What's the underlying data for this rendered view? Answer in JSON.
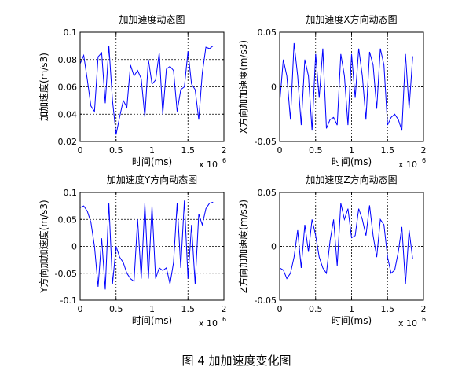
{
  "figure_caption": "图 4  加加速度变化图",
  "chart_data": [
    {
      "type": "line",
      "title": "加加速度动态图",
      "xlabel": "时间(ms)",
      "ylabel": "加加速度(m/s3)",
      "x_exponent_label": "x 10",
      "x_exponent_power": "6",
      "xlim": [
        0,
        2
      ],
      "ylim": [
        0.02,
        0.1
      ],
      "xticks": [
        "0",
        "0.5",
        "1",
        "1.5",
        "2"
      ],
      "yticks": [
        "0.02",
        "0.04",
        "0.06",
        "0.08",
        "0.1"
      ],
      "grid": "dotted",
      "color": "#0000ff",
      "series": [
        {
          "x": [
            0,
            0.05,
            0.1,
            0.15,
            0.2,
            0.25,
            0.3,
            0.35,
            0.4,
            0.45,
            0.5,
            0.55,
            0.6,
            0.65,
            0.7,
            0.75,
            0.8,
            0.85,
            0.9,
            0.95,
            1.0,
            1.05,
            1.1,
            1.15,
            1.2,
            1.25,
            1.3,
            1.35,
            1.4,
            1.45,
            1.5,
            1.55,
            1.6,
            1.65,
            1.7,
            1.75,
            1.8,
            1.85
          ],
          "values": [
            0.077,
            0.083,
            0.065,
            0.046,
            0.042,
            0.082,
            0.085,
            0.048,
            0.09,
            0.05,
            0.025,
            0.038,
            0.05,
            0.045,
            0.076,
            0.068,
            0.072,
            0.066,
            0.038,
            0.08,
            0.062,
            0.065,
            0.085,
            0.04,
            0.073,
            0.075,
            0.072,
            0.042,
            0.058,
            0.06,
            0.086,
            0.062,
            0.058,
            0.036,
            0.07,
            0.089,
            0.088,
            0.09
          ]
        }
      ]
    },
    {
      "type": "line",
      "title": "加加速度X方向动态图",
      "xlabel": "时间(ms)",
      "ylabel": "X方向加加速度(m/s3)",
      "x_exponent_label": "x 10",
      "x_exponent_power": "6",
      "xlim": [
        0,
        2
      ],
      "ylim": [
        -0.05,
        0.05
      ],
      "xticks": [
        "0",
        "0.5",
        "1",
        "1.5",
        "2"
      ],
      "yticks": [
        "-0.05",
        "0",
        "0.05"
      ],
      "grid": "dotted",
      "color": "#0000ff",
      "series": [
        {
          "x": [
            0,
            0.05,
            0.1,
            0.15,
            0.2,
            0.25,
            0.3,
            0.35,
            0.4,
            0.45,
            0.5,
            0.55,
            0.6,
            0.65,
            0.7,
            0.75,
            0.8,
            0.85,
            0.9,
            0.95,
            1.0,
            1.05,
            1.1,
            1.15,
            1.2,
            1.25,
            1.3,
            1.35,
            1.4,
            1.45,
            1.5,
            1.55,
            1.6,
            1.65,
            1.7,
            1.75,
            1.8,
            1.85
          ],
          "values": [
            -0.015,
            0.025,
            0.01,
            -0.03,
            0.04,
            0.01,
            -0.035,
            0.025,
            0.01,
            -0.04,
            0.03,
            -0.01,
            0.035,
            -0.038,
            -0.03,
            -0.028,
            -0.035,
            0.03,
            0.01,
            -0.035,
            0.03,
            -0.01,
            0.035,
            0.01,
            -0.03,
            0.032,
            0.02,
            -0.02,
            0.035,
            0.02,
            -0.035,
            -0.028,
            -0.025,
            -0.03,
            -0.04,
            0.03,
            -0.02,
            0.028
          ]
        }
      ]
    },
    {
      "type": "line",
      "title": "加加速度Y方向动态图",
      "xlabel": "时间(ms)",
      "ylabel": "Y方向加加速度(m/s3)",
      "x_exponent_label": "x 10",
      "x_exponent_power": "6",
      "xlim": [
        0,
        2
      ],
      "ylim": [
        -0.1,
        0.1
      ],
      "xticks": [
        "0",
        "0.5",
        "1",
        "1.5",
        "2"
      ],
      "yticks": [
        "-0.1",
        "-0.05",
        "0",
        "0.05",
        "0.1"
      ],
      "grid": "dotted",
      "color": "#0000ff",
      "series": [
        {
          "x": [
            0,
            0.05,
            0.1,
            0.15,
            0.2,
            0.25,
            0.3,
            0.35,
            0.4,
            0.45,
            0.5,
            0.55,
            0.6,
            0.65,
            0.7,
            0.75,
            0.8,
            0.85,
            0.9,
            0.95,
            1.0,
            1.05,
            1.1,
            1.15,
            1.2,
            1.25,
            1.3,
            1.35,
            1.4,
            1.45,
            1.5,
            1.55,
            1.6,
            1.65,
            1.7,
            1.75,
            1.8,
            1.85
          ],
          "values": [
            0.072,
            0.075,
            0.065,
            0.045,
            0.0,
            -0.075,
            0.015,
            -0.08,
            0.08,
            -0.07,
            0.0,
            -0.02,
            -0.03,
            -0.05,
            -0.06,
            -0.065,
            0.05,
            -0.06,
            0.08,
            -0.06,
            0.075,
            -0.06,
            -0.04,
            -0.045,
            -0.04,
            -0.07,
            -0.03,
            0.08,
            -0.04,
            0.085,
            -0.06,
            0.04,
            -0.07,
            0.06,
            0.04,
            0.07,
            0.08,
            0.082
          ]
        }
      ]
    },
    {
      "type": "line",
      "title": "加加速度Z方向动态图",
      "xlabel": "时间(ms)",
      "ylabel": "Z方向加加速度(m/s3)",
      "x_exponent_label": "x 10",
      "x_exponent_power": "6",
      "xlim": [
        0,
        2
      ],
      "ylim": [
        -0.05,
        0.05
      ],
      "xticks": [
        "0",
        "0.5",
        "1",
        "1.5",
        "2"
      ],
      "yticks": [
        "-0.05",
        "0",
        "0.05"
      ],
      "grid": "dotted",
      "color": "#0000ff",
      "series": [
        {
          "x": [
            0,
            0.05,
            0.1,
            0.15,
            0.2,
            0.25,
            0.3,
            0.35,
            0.4,
            0.45,
            0.5,
            0.55,
            0.6,
            0.65,
            0.7,
            0.75,
            0.8,
            0.85,
            0.9,
            0.95,
            1.0,
            1.05,
            1.1,
            1.15,
            1.2,
            1.25,
            1.3,
            1.35,
            1.4,
            1.45,
            1.5,
            1.55,
            1.6,
            1.65,
            1.7,
            1.75,
            1.8,
            1.85
          ],
          "values": [
            -0.02,
            -0.022,
            -0.03,
            -0.025,
            -0.01,
            0.015,
            -0.02,
            0.02,
            -0.005,
            0.025,
            0.01,
            -0.01,
            -0.02,
            -0.025,
            0.005,
            0.025,
            -0.018,
            0.04,
            0.025,
            0.035,
            0.008,
            0.01,
            0.035,
            0.025,
            0.01,
            0.038,
            0.01,
            -0.01,
            0.025,
            0.02,
            -0.01,
            -0.025,
            -0.022,
            -0.005,
            0.018,
            -0.035,
            0.015,
            -0.012
          ]
        }
      ]
    }
  ]
}
